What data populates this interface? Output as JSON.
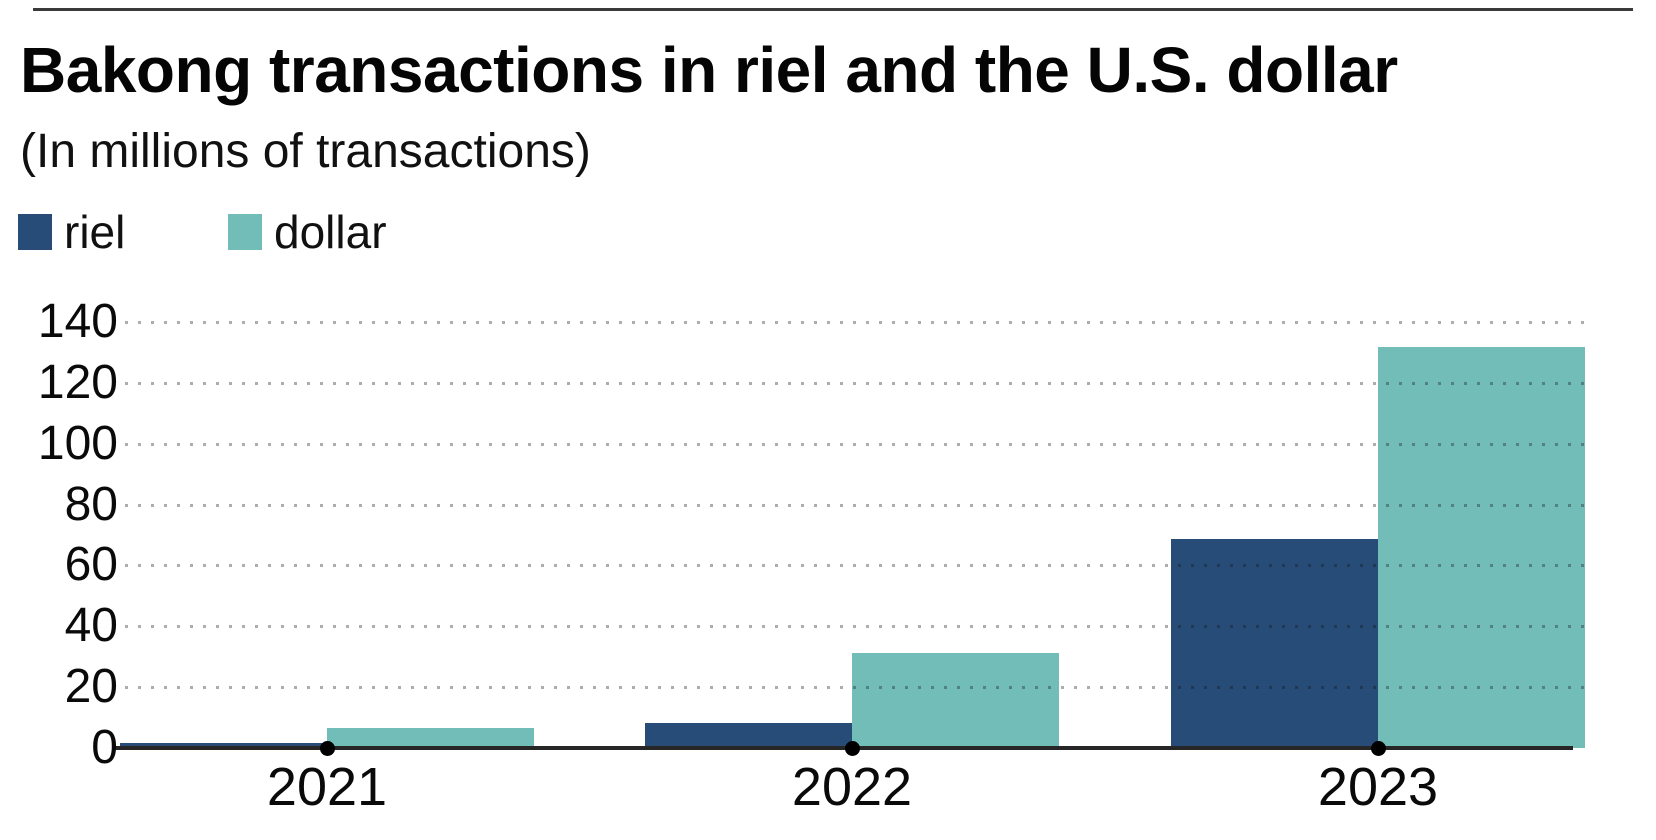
{
  "page": {
    "title": "Bakong transactions in riel and the U.S. dollar",
    "subtitle": "(In millions of transactions)"
  },
  "legend": {
    "items": [
      {
        "label": "riel",
        "color": "#264c77"
      },
      {
        "label": "dollar",
        "color": "#73bdb9"
      }
    ]
  },
  "chart_data": {
    "type": "bar",
    "title": "Bakong transactions in riel and the U.S. dollar",
    "subtitle": "(In millions of transactions)",
    "categories": [
      "2021",
      "2022",
      "2023"
    ],
    "series": [
      {
        "name": "riel",
        "color": "#264c77",
        "values": [
          1.6,
          8.3,
          68.7
        ]
      },
      {
        "name": "dollar",
        "color": "#73bdb9",
        "values": [
          6.6,
          31.2,
          131.7
        ]
      }
    ],
    "ylim": [
      0,
      140
    ],
    "yticks": [
      0,
      20,
      40,
      60,
      80,
      100,
      120,
      140
    ],
    "xlabel": "",
    "ylabel": "",
    "grid": "dotted-horizontal",
    "legend_position": "top-left",
    "axis_color": "#262626",
    "grid_dot_color": "rgba(20,20,20,0.35)",
    "tick_dot_color": "#000000"
  }
}
